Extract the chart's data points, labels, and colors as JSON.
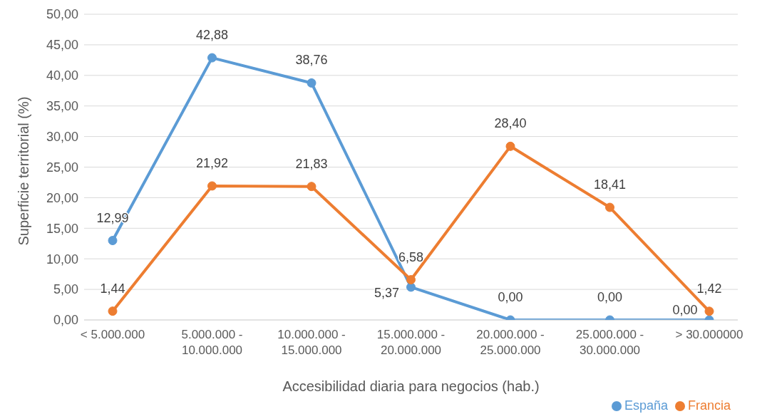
{
  "chart_data": {
    "type": "line",
    "xlabel": "Accesibilidad diaria para negocios (hab.)",
    "ylabel": "Superficie territorial (%)",
    "categories": [
      "< 5.000.000",
      "5.000.000 - 10.000.000",
      "10.000.000 - 15.000.000",
      "15.000.000 - 20.000.000",
      "20.000.000 - 25.000.000",
      "25.000.000 - 30.000.000",
      "> 30.000000"
    ],
    "series": [
      {
        "name": "España",
        "color": "#5b9bd5",
        "values": [
          12.99,
          42.88,
          38.76,
          5.37,
          0,
          0,
          0
        ],
        "value_labels": [
          "12,99",
          "42,88",
          "38,76",
          "5,37",
          "0,00",
          "0,00",
          "0,00"
        ]
      },
      {
        "name": "Francia",
        "color": "#ed7d31",
        "values": [
          1.44,
          21.92,
          21.83,
          6.58,
          28.4,
          18.41,
          1.42
        ],
        "value_labels": [
          "1,44",
          "21,92",
          "21,83",
          "6,58",
          "28,40",
          "18,41",
          "1,42"
        ]
      }
    ],
    "ylim": [
      0,
      50
    ],
    "yticks": [
      {
        "value": 0,
        "label": "0,00"
      },
      {
        "value": 5,
        "label": "5,00"
      },
      {
        "value": 10,
        "label": "10,00"
      },
      {
        "value": 15,
        "label": "15,00"
      },
      {
        "value": 20,
        "label": "20,00"
      },
      {
        "value": 25,
        "label": "25,00"
      },
      {
        "value": 30,
        "label": "30,00"
      },
      {
        "value": 35,
        "label": "35,00"
      },
      {
        "value": 40,
        "label": "40,00"
      },
      {
        "value": 45,
        "label": "45,00"
      },
      {
        "value": 50,
        "label": "50,00"
      }
    ],
    "grid": "y",
    "legend": "bottom right",
    "marker": "circle",
    "line_style": "solid"
  }
}
